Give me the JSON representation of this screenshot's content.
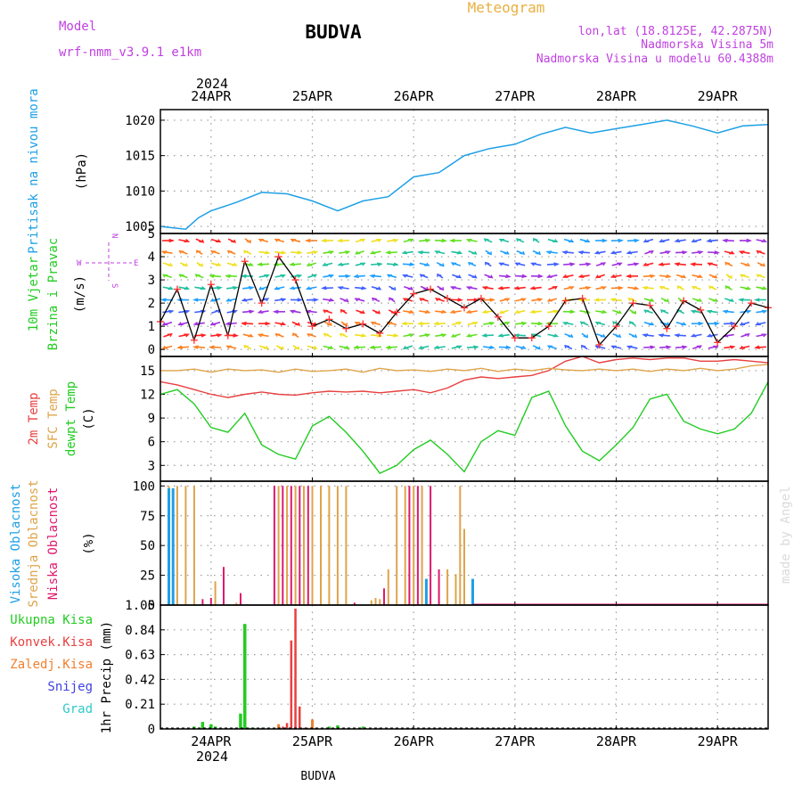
{
  "header": {
    "model_label": "Model",
    "model_name": "wrf-nmm_v3.9.1  e1km",
    "station": "BUDVA",
    "title": "Meteogram",
    "lonlat": "lon,lat (18.8125E, 42.2875N)",
    "elevation": "Nadmorska Visina 5m",
    "model_elevation": "Nadmorska Visina u modelu 60.4388m"
  },
  "footer": {
    "station": "BUDVA"
  },
  "credit": "made by Angel",
  "colors": {
    "pressure": "#1ea0e6",
    "temp2m": "#e84040",
    "sfc_temp": "#dea44a",
    "dewpoint": "#22cc22",
    "high_cloud": "#1ea0e6",
    "mid_cloud": "#dea44a",
    "low_cloud": "#e0186e",
    "total_precip": "#22cc22",
    "conv_precip": "#e84040",
    "frozen_precip": "#f08030",
    "snow": "#4040e0",
    "graupel": "#30c8c8",
    "model_label": "#c040e0",
    "title": "#e8b040"
  },
  "time_axis": {
    "year": "2024",
    "day_labels": [
      "24APR",
      "25APR",
      "26APR",
      "27APR",
      "28APR",
      "29APR"
    ],
    "x_range_hours": [
      -12,
      132
    ]
  },
  "chart_data": [
    {
      "type": "line",
      "ylabel": [
        "Pritisak na nivou mora",
        "(hPa)"
      ],
      "ylim": [
        1004,
        1021.5
      ],
      "yticks": [
        1005,
        1010,
        1015,
        1020
      ],
      "grid": true,
      "x_hours": [
        -12,
        -6,
        -3,
        0,
        6,
        12,
        18,
        24,
        30,
        36,
        42,
        48,
        54,
        60,
        66,
        72,
        78,
        84,
        90,
        96,
        102,
        108,
        114,
        120,
        126,
        132
      ],
      "series": [
        {
          "values": [
            1005,
            1004.6,
            1006.2,
            1007.2,
            1008.4,
            1009.8,
            1009.6,
            1008.6,
            1007.2,
            1008.6,
            1009.2,
            1012.0,
            1012.6,
            1015.0,
            1016.0,
            1016.6,
            1018.0,
            1019.0,
            1018.2,
            1018.8,
            1019.4,
            1020.0,
            1019.2,
            1018.2,
            1019.2,
            1019.4
          ]
        }
      ]
    },
    {
      "type": "line",
      "ylabel": [
        "10m Vjetar",
        "Brzina i Pravac",
        "(m/s)"
      ],
      "compass": {
        "north": "N",
        "south": "S",
        "west": "W",
        "east": "E"
      },
      "ylim": [
        -0.3,
        5
      ],
      "yticks": [
        0,
        1,
        2,
        3,
        4,
        5
      ],
      "grid": true,
      "x_hours": [
        -12,
        -8,
        -4,
        0,
        4,
        8,
        12,
        16,
        20,
        24,
        28,
        32,
        36,
        40,
        44,
        48,
        52,
        56,
        60,
        64,
        68,
        72,
        76,
        80,
        84,
        88,
        92,
        96,
        100,
        104,
        108,
        112,
        116,
        120,
        124,
        128,
        132
      ],
      "series": [
        {
          "values": [
            1.2,
            2.6,
            0.4,
            2.8,
            0.6,
            3.8,
            2.0,
            4.0,
            3.0,
            1.0,
            1.3,
            0.9,
            1.1,
            0.7,
            1.6,
            2.4,
            2.6,
            2.2,
            1.8,
            2.2,
            1.4,
            0.5,
            0.5,
            1.0,
            2.1,
            2.2,
            0.2,
            1.0,
            2.0,
            1.9,
            0.9,
            2.1,
            1.7,
            0.3,
            1.0,
            2.0,
            1.8
          ]
        }
      ]
    },
    {
      "type": "line",
      "ylabel": [
        "2m Temp",
        "SFC Temp",
        "dewpt Temp",
        "(C)"
      ],
      "ylim": [
        1,
        16.8
      ],
      "yticks": [
        3,
        6,
        9,
        12,
        15
      ],
      "grid": true,
      "x_hours": [
        -12,
        -8,
        -4,
        0,
        4,
        8,
        12,
        16,
        20,
        24,
        28,
        32,
        36,
        40,
        44,
        48,
        52,
        56,
        60,
        64,
        68,
        72,
        76,
        80,
        84,
        88,
        92,
        96,
        100,
        104,
        108,
        112,
        116,
        120,
        124,
        128,
        132
      ],
      "series": [
        {
          "name": "2m Temp",
          "values": [
            13.6,
            13.2,
            12.6,
            12.0,
            11.6,
            12.0,
            12.3,
            12.0,
            11.9,
            12.2,
            12.4,
            12.3,
            12.4,
            12.2,
            12.4,
            12.6,
            12.2,
            12.8,
            13.8,
            14.2,
            14.0,
            14.2,
            14.4,
            15.0,
            16.2,
            16.8,
            16.0,
            16.4,
            16.6,
            16.4,
            16.6,
            16.6,
            16.2,
            16.2,
            16.4,
            16.2,
            16.0
          ]
        },
        {
          "name": "SFC Temp",
          "values": [
            15.0,
            15.0,
            15.2,
            14.8,
            15.2,
            15.0,
            15.1,
            14.8,
            15.2,
            14.9,
            15.0,
            15.2,
            14.8,
            15.3,
            15.0,
            15.1,
            14.9,
            15.2,
            15.0,
            15.3,
            14.9,
            15.2,
            15.0,
            15.3,
            15.1,
            15.0,
            15.2,
            15.0,
            15.2,
            14.9,
            15.2,
            15.0,
            15.3,
            15.0,
            15.2,
            15.6,
            15.8
          ]
        },
        {
          "name": "dewpt Temp",
          "values": [
            12.0,
            12.6,
            10.8,
            7.8,
            7.2,
            9.6,
            5.6,
            4.4,
            3.8,
            8.0,
            9.2,
            7.2,
            4.8,
            2.0,
            3.0,
            5.0,
            6.2,
            4.4,
            2.2,
            6.0,
            7.4,
            6.8,
            11.6,
            12.4,
            8.0,
            4.8,
            3.6,
            5.6,
            7.8,
            11.4,
            12.0,
            8.6,
            7.6,
            7.0,
            7.6,
            9.6,
            13.6
          ]
        }
      ]
    },
    {
      "type": "bar",
      "ylabel": [
        "Visoka Oblacnost",
        "Srednja Oblacnost",
        "Niska Oblacnost",
        "(%)"
      ],
      "ylim": [
        0,
        104
      ],
      "yticks": [
        0,
        25,
        50,
        75,
        100
      ],
      "grid": true,
      "series": [
        {
          "name": "Visoka Oblacnost",
          "x_hours": [
            -10,
            -9,
            51,
            62
          ],
          "values": [
            98,
            98,
            22,
            22
          ]
        },
        {
          "name": "Srednja Oblacnost",
          "x_hours": [
            -10,
            -8,
            -6,
            -4,
            1,
            6,
            16,
            18,
            20,
            22,
            24,
            26,
            28,
            30,
            32,
            38,
            39,
            40,
            42,
            44,
            46,
            48,
            50,
            56,
            58,
            59,
            60
          ],
          "values": [
            100,
            100,
            100,
            100,
            20,
            2,
            100,
            100,
            100,
            100,
            100,
            100,
            100,
            100,
            100,
            4,
            6,
            5,
            30,
            100,
            100,
            100,
            100,
            30,
            26,
            100,
            64
          ]
        },
        {
          "name": "Niska Oblacnost",
          "x_hours": [
            -2,
            0,
            3,
            7,
            15,
            17,
            19,
            21,
            23,
            34,
            41,
            47,
            49,
            52,
            54
          ],
          "values": [
            5,
            6,
            32,
            10,
            100,
            100,
            100,
            100,
            100,
            2,
            14,
            100,
            100,
            100,
            30
          ]
        }
      ]
    },
    {
      "type": "bar",
      "ylabel": [
        "1hr Precip (mm)"
      ],
      "legend": [
        "Ukupna Kisa",
        "Konvek.Kisa",
        "Zaledj.Kisa",
        "Snijeg",
        "Grad"
      ],
      "ylim": [
        0,
        1.05
      ],
      "yticks": [
        0,
        0.21,
        0.42,
        0.63,
        0.84,
        1.05
      ],
      "grid": true,
      "series": [
        {
          "name": "Ukupna Kisa",
          "x_hours": [
            -4,
            -2,
            0,
            1,
            6,
            7,
            8,
            9,
            10,
            12,
            28,
            30,
            36,
            40,
            48
          ],
          "values": [
            0.02,
            0.06,
            0.04,
            0.02,
            0.01,
            0.13,
            0.89,
            0.01,
            0.01,
            0.01,
            0.02,
            0.03,
            0.02,
            0.01,
            0.01
          ]
        },
        {
          "name": "Konvek.Kisa",
          "x_hours": [
            17,
            18,
            19,
            20,
            21,
            22
          ],
          "values": [
            0.02,
            0.05,
            0.75,
            1.02,
            0.19,
            0.01
          ]
        },
        {
          "name": "Zaledj.Kisa",
          "x_hours": [
            16,
            23,
            24,
            30
          ],
          "values": [
            0.04,
            0.01,
            0.08,
            0.02
          ]
        }
      ]
    }
  ]
}
